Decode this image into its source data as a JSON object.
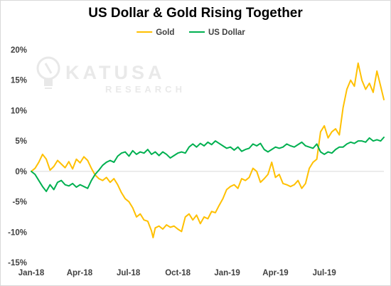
{
  "chart_data": {
    "type": "line",
    "title": "US Dollar & Gold Rising Together",
    "xlabel": "",
    "ylabel": "",
    "y_unit": "%",
    "ylim": [
      -15,
      20
    ],
    "y_ticks": [
      -15,
      -10,
      -5,
      0,
      5,
      10,
      15,
      20
    ],
    "y_tick_labels": [
      "-15%",
      "-10%",
      "-5%",
      "0%",
      "5%",
      "10%",
      "15%",
      "20%"
    ],
    "x_range": [
      "2018-01-01",
      "2019-10-20"
    ],
    "x_ticks": [
      {
        "date": "2018-01-01",
        "label": "Jan-18"
      },
      {
        "date": "2018-04-01",
        "label": "Apr-18"
      },
      {
        "date": "2018-07-01",
        "label": "Jul-18"
      },
      {
        "date": "2018-10-01",
        "label": "Oct-18"
      },
      {
        "date": "2019-01-01",
        "label": "Jan-19"
      },
      {
        "date": "2019-04-01",
        "label": "Apr-19"
      },
      {
        "date": "2019-07-01",
        "label": "Jul-19"
      }
    ],
    "grid": false,
    "legend_position": "top-center",
    "series": [
      {
        "name": "Gold",
        "color": "#FFC000",
        "points": [
          [
            "2018-01-01",
            0.0
          ],
          [
            "2018-01-08",
            0.5
          ],
          [
            "2018-01-15",
            1.5
          ],
          [
            "2018-01-22",
            2.8
          ],
          [
            "2018-01-29",
            2.0
          ],
          [
            "2018-02-05",
            0.2
          ],
          [
            "2018-02-12",
            0.8
          ],
          [
            "2018-02-19",
            1.8
          ],
          [
            "2018-02-26",
            1.2
          ],
          [
            "2018-03-05",
            0.6
          ],
          [
            "2018-03-12",
            1.6
          ],
          [
            "2018-03-19",
            0.4
          ],
          [
            "2018-03-26",
            2.0
          ],
          [
            "2018-04-02",
            1.4
          ],
          [
            "2018-04-09",
            2.4
          ],
          [
            "2018-04-16",
            1.8
          ],
          [
            "2018-04-23",
            0.5
          ],
          [
            "2018-04-30",
            -0.6
          ],
          [
            "2018-05-07",
            -1.2
          ],
          [
            "2018-05-14",
            -1.5
          ],
          [
            "2018-05-21",
            -1.0
          ],
          [
            "2018-05-28",
            -1.8
          ],
          [
            "2018-06-04",
            -1.2
          ],
          [
            "2018-06-11",
            -2.2
          ],
          [
            "2018-06-18",
            -3.5
          ],
          [
            "2018-06-25",
            -4.5
          ],
          [
            "2018-07-02",
            -5.0
          ],
          [
            "2018-07-09",
            -6.0
          ],
          [
            "2018-07-16",
            -7.5
          ],
          [
            "2018-07-23",
            -7.0
          ],
          [
            "2018-07-30",
            -8.0
          ],
          [
            "2018-08-06",
            -8.2
          ],
          [
            "2018-08-13",
            -9.8
          ],
          [
            "2018-08-16",
            -10.9
          ],
          [
            "2018-08-20",
            -9.3
          ],
          [
            "2018-08-27",
            -9.0
          ],
          [
            "2018-09-03",
            -9.5
          ],
          [
            "2018-09-10",
            -8.8
          ],
          [
            "2018-09-17",
            -9.2
          ],
          [
            "2018-09-24",
            -9.0
          ],
          [
            "2018-10-01",
            -9.5
          ],
          [
            "2018-10-08",
            -9.9
          ],
          [
            "2018-10-15",
            -7.5
          ],
          [
            "2018-10-22",
            -7.0
          ],
          [
            "2018-10-29",
            -8.0
          ],
          [
            "2018-11-05",
            -7.2
          ],
          [
            "2018-11-12",
            -8.6
          ],
          [
            "2018-11-19",
            -7.5
          ],
          [
            "2018-11-26",
            -7.8
          ],
          [
            "2018-12-03",
            -6.6
          ],
          [
            "2018-12-10",
            -6.8
          ],
          [
            "2018-12-17",
            -5.6
          ],
          [
            "2018-12-24",
            -4.5
          ],
          [
            "2018-12-31",
            -3.0
          ],
          [
            "2019-01-07",
            -2.5
          ],
          [
            "2019-01-14",
            -2.2
          ],
          [
            "2019-01-21",
            -2.8
          ],
          [
            "2019-01-28",
            -1.2
          ],
          [
            "2019-02-04",
            -1.5
          ],
          [
            "2019-02-11",
            -1.0
          ],
          [
            "2019-02-18",
            0.5
          ],
          [
            "2019-02-25",
            0.0
          ],
          [
            "2019-03-04",
            -1.8
          ],
          [
            "2019-03-11",
            -1.2
          ],
          [
            "2019-03-18",
            -0.5
          ],
          [
            "2019-03-25",
            1.5
          ],
          [
            "2019-04-01",
            -1.0
          ],
          [
            "2019-04-08",
            -0.5
          ],
          [
            "2019-04-15",
            -2.0
          ],
          [
            "2019-04-22",
            -2.2
          ],
          [
            "2019-04-29",
            -2.5
          ],
          [
            "2019-05-06",
            -2.2
          ],
          [
            "2019-05-13",
            -1.5
          ],
          [
            "2019-05-20",
            -2.8
          ],
          [
            "2019-05-27",
            -2.0
          ],
          [
            "2019-06-03",
            0.5
          ],
          [
            "2019-06-10",
            1.5
          ],
          [
            "2019-06-17",
            2.0
          ],
          [
            "2019-06-24",
            6.5
          ],
          [
            "2019-07-01",
            7.5
          ],
          [
            "2019-07-08",
            5.5
          ],
          [
            "2019-07-15",
            6.5
          ],
          [
            "2019-07-22",
            7.0
          ],
          [
            "2019-07-29",
            6.0
          ],
          [
            "2019-08-05",
            10.5
          ],
          [
            "2019-08-12",
            13.5
          ],
          [
            "2019-08-19",
            15.0
          ],
          [
            "2019-08-26",
            14.0
          ],
          [
            "2019-09-02",
            17.8
          ],
          [
            "2019-09-09",
            15.0
          ],
          [
            "2019-09-16",
            13.5
          ],
          [
            "2019-09-23",
            14.5
          ],
          [
            "2019-09-30",
            13.0
          ],
          [
            "2019-10-07",
            16.5
          ],
          [
            "2019-10-14",
            14.0
          ],
          [
            "2019-10-20",
            11.8
          ]
        ]
      },
      {
        "name": "US Dollar",
        "color": "#00B050",
        "points": [
          [
            "2018-01-01",
            0.0
          ],
          [
            "2018-01-08",
            -0.5
          ],
          [
            "2018-01-15",
            -1.5
          ],
          [
            "2018-01-22",
            -2.5
          ],
          [
            "2018-01-29",
            -3.3
          ],
          [
            "2018-02-05",
            -2.2
          ],
          [
            "2018-02-12",
            -3.0
          ],
          [
            "2018-02-19",
            -1.8
          ],
          [
            "2018-02-26",
            -1.5
          ],
          [
            "2018-03-05",
            -2.2
          ],
          [
            "2018-03-12",
            -2.4
          ],
          [
            "2018-03-19",
            -2.0
          ],
          [
            "2018-03-26",
            -2.6
          ],
          [
            "2018-04-02",
            -2.2
          ],
          [
            "2018-04-09",
            -2.5
          ],
          [
            "2018-04-16",
            -2.8
          ],
          [
            "2018-04-23",
            -1.5
          ],
          [
            "2018-04-30",
            -0.5
          ],
          [
            "2018-05-07",
            0.2
          ],
          [
            "2018-05-14",
            1.0
          ],
          [
            "2018-05-21",
            1.5
          ],
          [
            "2018-05-28",
            1.8
          ],
          [
            "2018-06-04",
            1.5
          ],
          [
            "2018-06-11",
            2.5
          ],
          [
            "2018-06-18",
            3.0
          ],
          [
            "2018-06-25",
            3.2
          ],
          [
            "2018-07-02",
            2.5
          ],
          [
            "2018-07-09",
            3.4
          ],
          [
            "2018-07-16",
            2.8
          ],
          [
            "2018-07-23",
            3.2
          ],
          [
            "2018-07-30",
            3.0
          ],
          [
            "2018-08-06",
            3.6
          ],
          [
            "2018-08-13",
            2.8
          ],
          [
            "2018-08-20",
            3.2
          ],
          [
            "2018-08-27",
            2.6
          ],
          [
            "2018-09-03",
            3.2
          ],
          [
            "2018-09-10",
            2.8
          ],
          [
            "2018-09-17",
            2.2
          ],
          [
            "2018-09-24",
            2.6
          ],
          [
            "2018-10-01",
            3.0
          ],
          [
            "2018-10-08",
            3.2
          ],
          [
            "2018-10-15",
            3.0
          ],
          [
            "2018-10-22",
            4.0
          ],
          [
            "2018-10-29",
            4.5
          ],
          [
            "2018-11-05",
            4.0
          ],
          [
            "2018-11-12",
            4.6
          ],
          [
            "2018-11-19",
            4.2
          ],
          [
            "2018-11-26",
            4.8
          ],
          [
            "2018-12-03",
            4.4
          ],
          [
            "2018-12-10",
            5.0
          ],
          [
            "2018-12-17",
            4.6
          ],
          [
            "2018-12-24",
            4.2
          ],
          [
            "2018-12-31",
            3.8
          ],
          [
            "2019-01-07",
            4.0
          ],
          [
            "2019-01-14",
            3.5
          ],
          [
            "2019-01-21",
            4.0
          ],
          [
            "2019-01-28",
            3.3
          ],
          [
            "2019-02-04",
            3.6
          ],
          [
            "2019-02-11",
            3.8
          ],
          [
            "2019-02-18",
            4.5
          ],
          [
            "2019-02-25",
            4.2
          ],
          [
            "2019-03-04",
            4.6
          ],
          [
            "2019-03-11",
            3.6
          ],
          [
            "2019-03-18",
            3.2
          ],
          [
            "2019-03-25",
            3.6
          ],
          [
            "2019-04-01",
            4.0
          ],
          [
            "2019-04-08",
            3.8
          ],
          [
            "2019-04-15",
            4.0
          ],
          [
            "2019-04-22",
            4.5
          ],
          [
            "2019-04-29",
            4.2
          ],
          [
            "2019-05-06",
            4.0
          ],
          [
            "2019-05-13",
            4.4
          ],
          [
            "2019-05-20",
            4.8
          ],
          [
            "2019-05-27",
            4.2
          ],
          [
            "2019-06-03",
            4.0
          ],
          [
            "2019-06-10",
            3.8
          ],
          [
            "2019-06-17",
            4.5
          ],
          [
            "2019-06-24",
            3.2
          ],
          [
            "2019-07-01",
            2.8
          ],
          [
            "2019-07-08",
            3.2
          ],
          [
            "2019-07-15",
            3.0
          ],
          [
            "2019-07-22",
            3.6
          ],
          [
            "2019-07-29",
            4.0
          ],
          [
            "2019-08-05",
            4.0
          ],
          [
            "2019-08-12",
            4.5
          ],
          [
            "2019-08-19",
            4.8
          ],
          [
            "2019-08-26",
            4.6
          ],
          [
            "2019-09-02",
            5.0
          ],
          [
            "2019-09-09",
            5.0
          ],
          [
            "2019-09-16",
            4.8
          ],
          [
            "2019-09-23",
            5.5
          ],
          [
            "2019-09-30",
            5.0
          ],
          [
            "2019-10-07",
            5.2
          ],
          [
            "2019-10-14",
            5.0
          ],
          [
            "2019-10-20",
            5.6
          ]
        ]
      }
    ]
  },
  "watermark": {
    "brand": "KATUSA",
    "sub": "RESEARCH",
    "icon": "lightbulb-icon"
  }
}
